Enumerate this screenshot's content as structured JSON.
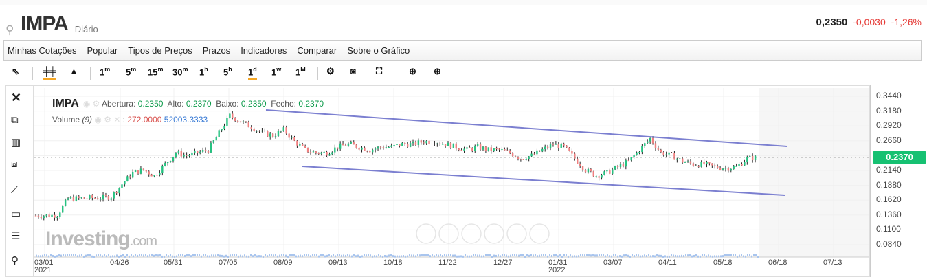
{
  "header": {
    "symbol": "IMPA",
    "period": "Diário",
    "last": "0,2350",
    "change": "-0,0030",
    "change_pct": "-1,26%"
  },
  "menu": [
    "Minhas Cotações",
    "Popular",
    "Tipos de Preços",
    "Prazos",
    "Indicadores",
    "Comparar",
    "Sobre o Gráfico"
  ],
  "toolbar": {
    "intervals": [
      {
        "n": "1",
        "u": "m"
      },
      {
        "n": "5",
        "u": "m"
      },
      {
        "n": "15",
        "u": "m"
      },
      {
        "n": "30",
        "u": "m"
      },
      {
        "n": "1",
        "u": "h"
      },
      {
        "n": "5",
        "u": "h"
      },
      {
        "n": "1",
        "u": "d"
      },
      {
        "n": "1",
        "u": "w"
      },
      {
        "n": "1",
        "u": "M"
      }
    ],
    "selected_interval": "1d",
    "chart_type": "candles"
  },
  "legend": {
    "symbol": "IMPA",
    "open_label": "Abertura:",
    "open": "0.2350",
    "high_label": "Alto:",
    "high": "0.2370",
    "low_label": "Baixo:",
    "low": "0.2350",
    "close_label": "Fecho:",
    "close": "0.2370",
    "volume_label": "Volume",
    "volume_period": "(9)",
    "volume_value": "272.0000",
    "volume_ma": "52003.3333"
  },
  "watermark": {
    "brand": "Investing",
    "suffix": ".com"
  },
  "price_axis": {
    "ticks": [
      "0.3440",
      "0.3180",
      "0.2920",
      "0.2660",
      "0.2140",
      "0.1880",
      "0.1620",
      "0.1360",
      "0.1100",
      "0.0840"
    ],
    "current": "0.2370",
    "current_color": "#16c172"
  },
  "x_axis": {
    "ticks": [
      "03/01",
      "04/26",
      "05/31",
      "07/05",
      "08/09",
      "09/13",
      "10/18",
      "11/22",
      "12/27",
      "01/31",
      "03/07",
      "04/11",
      "05/18",
      "06/18",
      "07/13"
    ],
    "years": [
      "2021",
      "2022"
    ]
  },
  "chart_data": {
    "type": "candlestick",
    "ylim": [
      0.084,
      0.344
    ],
    "closes": [
      0.135,
      0.135,
      0.136,
      0.165,
      0.165,
      0.166,
      0.166,
      0.168,
      0.19,
      0.21,
      0.215,
      0.205,
      0.225,
      0.245,
      0.24,
      0.245,
      0.25,
      0.28,
      0.31,
      0.3,
      0.29,
      0.28,
      0.275,
      0.285,
      0.265,
      0.25,
      0.245,
      0.245,
      0.255,
      0.26,
      0.255,
      0.25,
      0.255,
      0.255,
      0.26,
      0.26,
      0.265,
      0.265,
      0.26,
      0.255,
      0.25,
      0.255,
      0.25,
      0.25,
      0.245,
      0.235,
      0.24,
      0.25,
      0.26,
      0.255,
      0.235,
      0.215,
      0.205,
      0.21,
      0.22,
      0.23,
      0.25,
      0.27,
      0.245,
      0.24,
      0.23,
      0.225,
      0.225,
      0.22,
      0.218,
      0.22,
      0.235,
      0.237
    ]
  },
  "colors": {
    "up": "#26c281",
    "down": "#f08080",
    "trendline": "#7b7fd0"
  }
}
